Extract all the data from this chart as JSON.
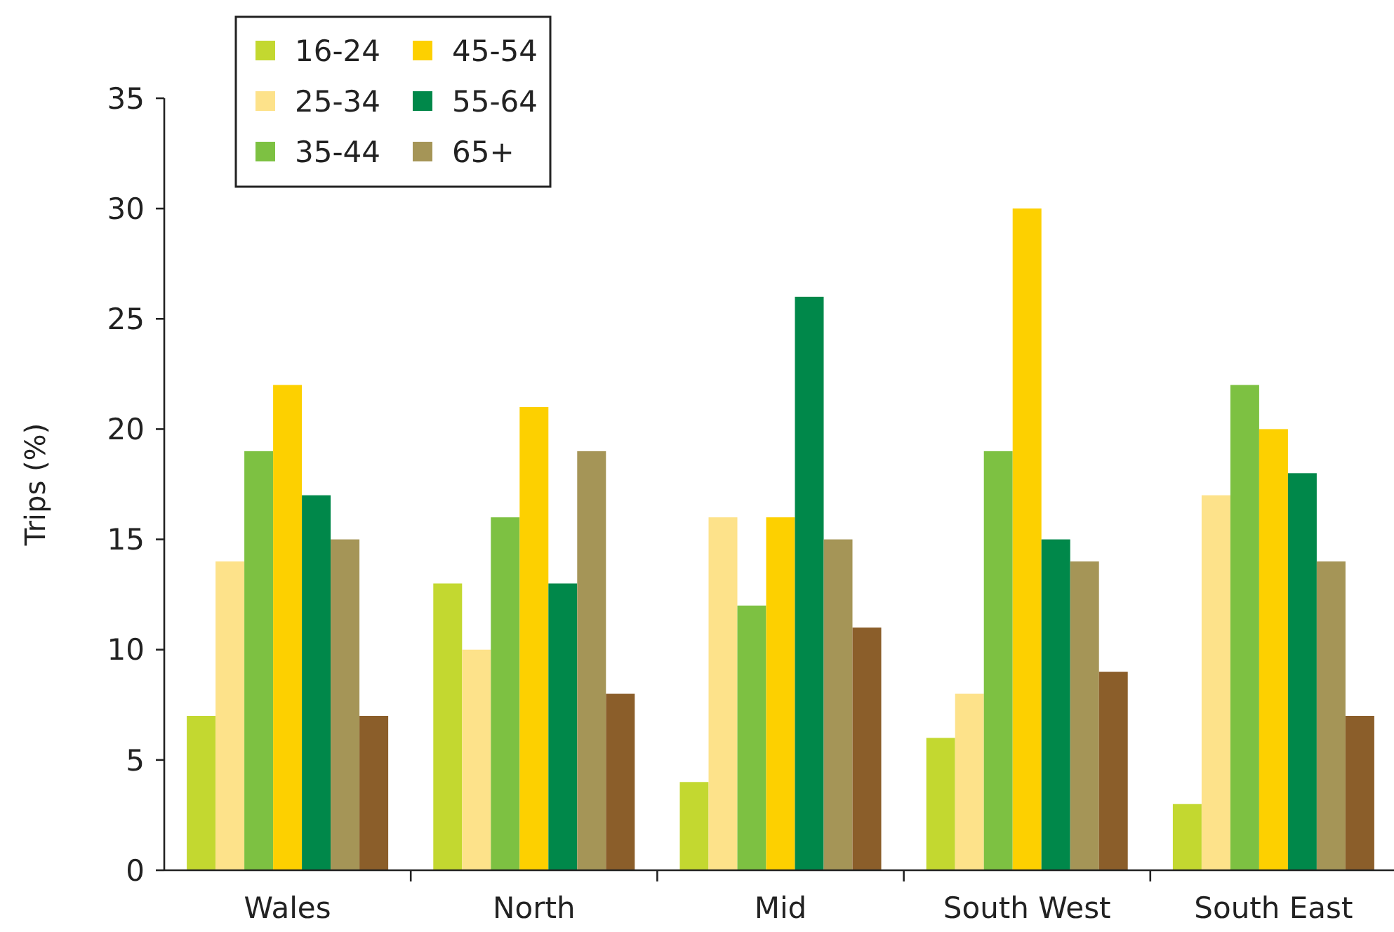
{
  "chart_data": {
    "type": "bar",
    "ylabel": "Trips (%)",
    "categories": [
      "Wales",
      "North",
      "Mid",
      "South West",
      "South East"
    ],
    "ylim": [
      0,
      35
    ],
    "yticks": [
      0,
      5,
      10,
      15,
      20,
      25,
      30,
      35
    ],
    "grid": false,
    "legend": "top left",
    "series": [
      {
        "name": "16-24",
        "color": "#c3d830",
        "values": [
          7,
          13,
          4,
          6,
          3
        ]
      },
      {
        "name": "25-34",
        "color": "#fde28a",
        "values": [
          14,
          10,
          16,
          8,
          17
        ]
      },
      {
        "name": "35-44",
        "color": "#7dc142",
        "values": [
          19,
          16,
          12,
          19,
          22
        ]
      },
      {
        "name": "45-54",
        "color": "#fdd000",
        "values": [
          22,
          21,
          16,
          30,
          20
        ]
      },
      {
        "name": "55-64",
        "color": "#00884a",
        "values": [
          17,
          13,
          26,
          15,
          18
        ]
      },
      {
        "name": "65+",
        "color": "#a59557",
        "values": [
          15,
          19,
          15,
          14,
          14
        ]
      },
      {
        "color": "#8b5e2a",
        "values": [
          7,
          8,
          11,
          9,
          7
        ]
      }
    ]
  }
}
